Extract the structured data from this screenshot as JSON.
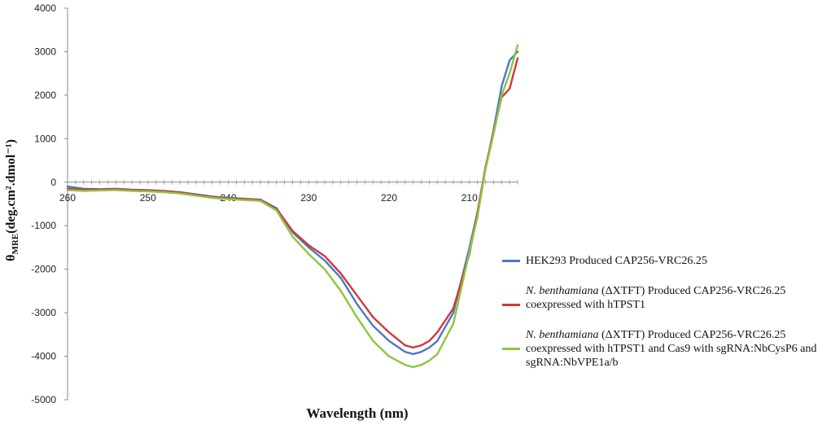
{
  "chart_data": {
    "type": "line",
    "title": "",
    "xlabel": "Wavelength  (nm)",
    "ylabel_main": "θ",
    "ylabel_sub": "MRE",
    "ylabel_units": "(deg.cm².dmol⁻¹)",
    "xlim": [
      260,
      204
    ],
    "ylim": [
      -5000,
      4000
    ],
    "x_ticks": [
      260,
      250,
      240,
      230,
      220,
      210
    ],
    "y_ticks": [
      4000,
      3000,
      2000,
      1000,
      0,
      -1000,
      -2000,
      -3000,
      -4000,
      -5000
    ],
    "x": [
      260,
      258,
      256,
      254,
      252,
      250,
      248,
      246,
      244,
      242,
      240,
      238,
      236,
      234,
      232,
      230,
      228,
      226,
      224,
      222,
      220,
      218,
      217,
      216,
      215,
      214,
      212,
      210,
      209,
      208,
      207,
      206,
      205,
      204
    ],
    "series": [
      {
        "name": "HEK293 Produced CAP256-VRC26.25",
        "color": "#4a7ac2",
        "values": [
          -100,
          -150,
          -160,
          -150,
          -170,
          -180,
          -200,
          -230,
          -280,
          -330,
          -360,
          -380,
          -400,
          -600,
          -1150,
          -1500,
          -1800,
          -2200,
          -2800,
          -3300,
          -3650,
          -3900,
          -3950,
          -3900,
          -3800,
          -3650,
          -3000,
          -1500,
          -700,
          300,
          1200,
          2200,
          2800,
          3000
        ]
      },
      {
        "name_italic": "N. benthamiana",
        "name": "(ΔXTFT) Produced CAP256-VRC26.25\ncoexpressed with hTPST1",
        "color": "#cf3a3a",
        "values": [
          -150,
          -170,
          -170,
          -160,
          -180,
          -190,
          -210,
          -240,
          -290,
          -340,
          -370,
          -390,
          -410,
          -620,
          -1120,
          -1450,
          -1700,
          -2100,
          -2600,
          -3100,
          -3450,
          -3750,
          -3800,
          -3750,
          -3650,
          -3450,
          -2900,
          -1650,
          -700,
          350,
          1150,
          1950,
          2150,
          2850
        ]
      },
      {
        "name_italic": "N. benthamiana",
        "name": "(ΔXTFT) Produced CAP256-VRC26.25\ncoexpressed with hTPST1  and Cas9 with  sgRNA:NbCysP6 and\nsgRNA:NbVPE1a/b",
        "color": "#8dc63f",
        "values": [
          -180,
          -200,
          -190,
          -180,
          -200,
          -210,
          -230,
          -260,
          -310,
          -360,
          -390,
          -410,
          -430,
          -650,
          -1250,
          -1650,
          -2000,
          -2500,
          -3100,
          -3650,
          -4000,
          -4200,
          -4250,
          -4200,
          -4100,
          -3950,
          -3250,
          -1600,
          -800,
          300,
          1100,
          2000,
          2500,
          3150
        ]
      }
    ]
  }
}
